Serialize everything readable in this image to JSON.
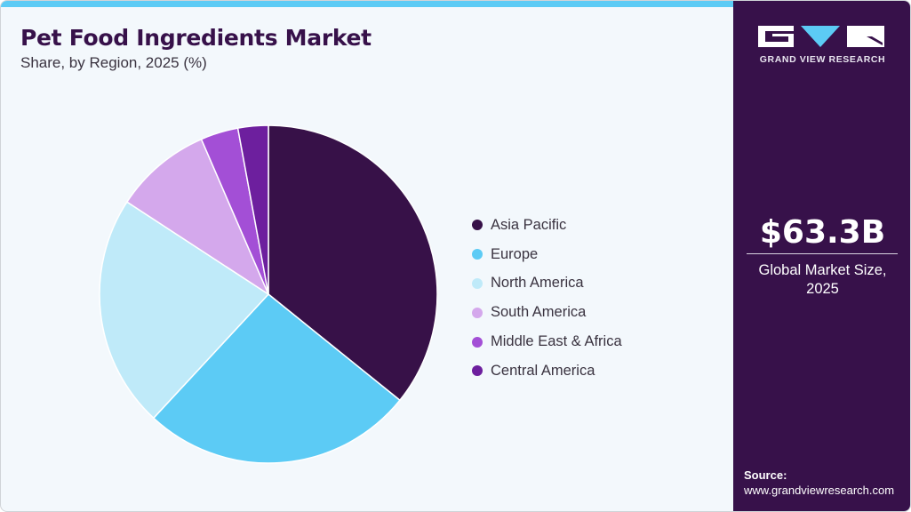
{
  "header": {
    "title": "Pet Food Ingredients Market",
    "subtitle": "Share, by Region, 2025 (%)"
  },
  "brand": {
    "name": "GRAND VIEW RESEARCH",
    "logo_icon": "gvr-logo-icon"
  },
  "summary": {
    "value": "$63.3B",
    "label_line1": "Global Market Size,",
    "label_line2": "2025"
  },
  "source": {
    "label": "Source:",
    "url": "www.grandviewresearch.com"
  },
  "legend": [
    {
      "label": "Asia Pacific",
      "color": "#371148"
    },
    {
      "label": "Europe",
      "color": "#5ccbf5"
    },
    {
      "label": "North America",
      "color": "#bfeaf9"
    },
    {
      "label": "South America",
      "color": "#d4a8ec"
    },
    {
      "label": "Middle East & Africa",
      "color": "#a34fd6"
    },
    {
      "label": "Central America",
      "color": "#6d1f9e"
    }
  ],
  "chart_data": {
    "type": "pie",
    "title": "Pet Food Ingredients Market",
    "subtitle": "Share, by Region, 2025 (%)",
    "categories": [
      "Asia Pacific",
      "Europe",
      "North America",
      "South America",
      "Middle East & Africa",
      "Central America"
    ],
    "values": [
      35.8,
      26.1,
      22.3,
      9.3,
      3.6,
      2.9
    ],
    "colors": [
      "#371148",
      "#5ccbf5",
      "#bfeaf9",
      "#d4a8ec",
      "#a34fd6",
      "#6d1f9e"
    ],
    "legend_position": "right",
    "start_angle": "top, clockwise",
    "total_market_size": "$63.3B"
  }
}
